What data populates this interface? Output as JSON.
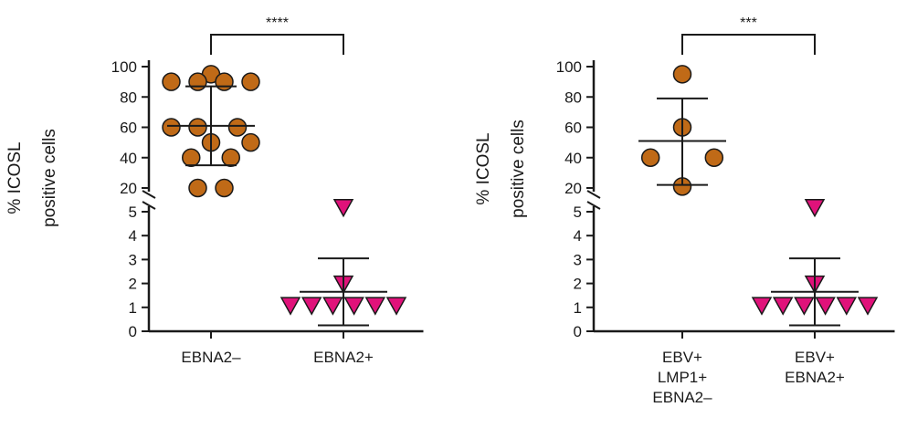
{
  "colors": {
    "circle": "#c06a17",
    "triangle": "#e0127a",
    "line": "#1a1a1a"
  },
  "chart_data": [
    {
      "type": "scatter",
      "title": "",
      "xlabel": "",
      "ylabel": "% ICOSL positive cells",
      "ylabel_lines": [
        "% ICOSL",
        "positive cells"
      ],
      "axis_break": true,
      "ylim_lower": [
        0,
        5
      ],
      "ylim_upper": [
        20,
        100
      ],
      "yticks_lower": [
        "0",
        "1",
        "2",
        "3",
        "4",
        "5"
      ],
      "yticks_upper": [
        "20",
        "40",
        "60",
        "80",
        "100"
      ],
      "significance": "****",
      "groups": [
        {
          "label_lines": [
            "EBNA2–"
          ],
          "marker": "circle",
          "points": [
            {
              "y": 95,
              "x": 0
            },
            {
              "y": 90,
              "x": -0.3
            },
            {
              "y": 90,
              "x": -0.1
            },
            {
              "y": 90,
              "x": 0.1
            },
            {
              "y": 90,
              "x": 0.3
            },
            {
              "y": 60,
              "x": -0.3
            },
            {
              "y": 60,
              "x": -0.1
            },
            {
              "y": 60,
              "x": 0.2
            },
            {
              "y": 50,
              "x": 0
            },
            {
              "y": 50,
              "x": 0.3
            },
            {
              "y": 40,
              "x": -0.15
            },
            {
              "y": 40,
              "x": 0.15
            },
            {
              "y": 20,
              "x": -0.1
            },
            {
              "y": 20,
              "x": 0.1
            }
          ],
          "mean": 61,
          "sd_upper": 87,
          "sd_lower": 35
        },
        {
          "label_lines": [
            "EBNA2+"
          ],
          "marker": "triangle",
          "points": [
            {
              "y": 5.2,
              "x": 0
            },
            {
              "y": 2.0,
              "x": 0
            },
            {
              "y": 1.1,
              "x": -0.4
            },
            {
              "y": 1.1,
              "x": -0.24
            },
            {
              "y": 1.1,
              "x": -0.08
            },
            {
              "y": 1.1,
              "x": 0.08
            },
            {
              "y": 1.1,
              "x": 0.24
            },
            {
              "y": 1.1,
              "x": 0.4
            }
          ],
          "mean": 1.65,
          "sd_upper": 3.05,
          "sd_lower": 0.25
        }
      ]
    },
    {
      "type": "scatter",
      "title": "",
      "xlabel": "",
      "ylabel": "% ICOSL positive cells",
      "ylabel_lines": [
        "% ICOSL",
        "positive cells"
      ],
      "axis_break": true,
      "ylim_lower": [
        0,
        5
      ],
      "ylim_upper": [
        20,
        100
      ],
      "yticks_lower": [
        "0",
        "1",
        "2",
        "3",
        "4",
        "5"
      ],
      "yticks_upper": [
        "20",
        "40",
        "60",
        "80",
        "100"
      ],
      "significance": "***",
      "groups": [
        {
          "label_lines": [
            "EBV+",
            "LMP1+",
            "EBNA2–"
          ],
          "marker": "circle",
          "points": [
            {
              "y": 95,
              "x": 0
            },
            {
              "y": 60,
              "x": 0
            },
            {
              "y": 40,
              "x": -0.24
            },
            {
              "y": 40,
              "x": 0.24
            },
            {
              "y": 21,
              "x": 0
            }
          ],
          "mean": 51,
          "sd_upper": 79,
          "sd_lower": 22
        },
        {
          "label_lines": [
            "EBV+",
            "EBNA2+"
          ],
          "marker": "triangle",
          "points": [
            {
              "y": 5.2,
              "x": 0
            },
            {
              "y": 2.0,
              "x": 0
            },
            {
              "y": 1.1,
              "x": -0.4
            },
            {
              "y": 1.1,
              "x": -0.24
            },
            {
              "y": 1.1,
              "x": -0.08
            },
            {
              "y": 1.1,
              "x": 0.08
            },
            {
              "y": 1.1,
              "x": 0.24
            },
            {
              "y": 1.1,
              "x": 0.4
            }
          ],
          "mean": 1.65,
          "sd_upper": 3.05,
          "sd_lower": 0.25
        }
      ]
    }
  ]
}
